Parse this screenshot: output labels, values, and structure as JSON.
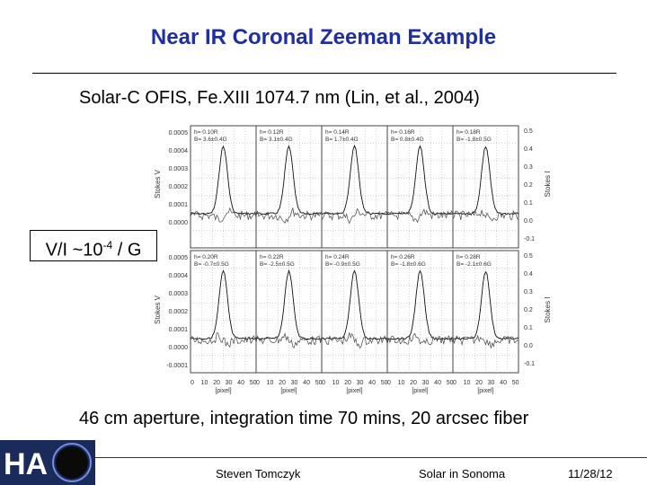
{
  "slide": {
    "title": "Near IR Coronal Zeeman Example",
    "subtitle": "Solar-C OFIS, Fe.XIII 1074.7 nm (Lin, et al., 2004)",
    "ratio_prefix": "V/I ~10",
    "ratio_exp": "-4",
    "ratio_suffix": " / G",
    "bottom_caption": "46 cm aperture, integration time 70 mins, 20 arcsec fiber",
    "footer_author": "Steven Tomczyk",
    "footer_venue": "Solar in Sonoma",
    "footer_date": "11/28/12",
    "logo_text": "HA",
    "accent_color": "#1f2ea0"
  },
  "chart_data": {
    "type": "line",
    "layout": "2 rows x 5 panels",
    "ylabel_left": "Stokes V",
    "ylabel_right": "Stokes I",
    "xlabel": "[pixel]",
    "x_ticks": [
      "0",
      "10",
      "20",
      "30",
      "40",
      "50"
    ],
    "left_ticks_top": [
      "0.0005",
      "0.0004",
      "0.0003",
      "0.0002",
      "0.0001",
      "0.0000"
    ],
    "left_ticks_bottom": [
      "0.0005",
      "0.0004",
      "0.0003",
      "0.0002",
      "0.0001",
      "0.0000",
      "-0.0001"
    ],
    "right_ticks": [
      "0.5",
      "0.4",
      "0.3",
      "0.2",
      "0.1",
      "0.0",
      "-0.1"
    ],
    "xlim": [
      0,
      50
    ],
    "series": [
      {
        "name": "Stokes I"
      },
      {
        "name": "Stokes V"
      }
    ],
    "panels": [
      {
        "h": "h= 0.10R",
        "b": "B= 3.6±0.4G",
        "row": 0
      },
      {
        "h": "h= 0.12R",
        "b": "B= 3.1±0.4G",
        "row": 0
      },
      {
        "h": "h= 0.14R",
        "b": "B= 1.7±0.4G",
        "row": 0
      },
      {
        "h": "h= 0.16R",
        "b": "B= 0.8±0.4G",
        "row": 0
      },
      {
        "h": "h= 0.18R",
        "b": "B= -1.8±0.5G",
        "row": 0
      },
      {
        "h": "h= 0.20R",
        "b": "B= -0.7±0.5G",
        "row": 1
      },
      {
        "h": "h= 0.22R",
        "b": "B= -2.5±0.5G",
        "row": 1
      },
      {
        "h": "h= 0.24R",
        "b": "B= -0.9±0.5G",
        "row": 1
      },
      {
        "h": "h= 0.26R",
        "b": "B= -1.8±0.6G",
        "row": 1
      },
      {
        "h": "h= 0.28R",
        "b": "B= -2.1±0.6G",
        "row": 1
      }
    ]
  }
}
